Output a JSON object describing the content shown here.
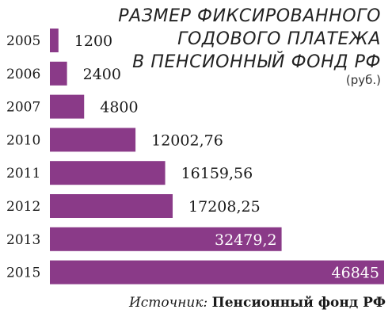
{
  "chart_data": {
    "type": "bar",
    "orientation": "horizontal",
    "title_lines": [
      "РАЗМЕР ФИКСИРОВАННОГО",
      "ГОДОВОГО ПЛАТЕЖА",
      "В ПЕНСИОННЫЙ ФОНД РФ"
    ],
    "unit": "(руб.)",
    "categories": [
      "2005",
      "2006",
      "2007",
      "2010",
      "2011",
      "2012",
      "2013",
      "2015"
    ],
    "values": [
      1200,
      2400,
      4800,
      12002.76,
      16159.56,
      17208.25,
      32479.2,
      46845
    ],
    "value_labels": [
      "1200",
      "2400",
      "4800",
      "12002,76",
      "16159,56",
      "17208,25",
      "32479,2",
      "46845"
    ],
    "xlim": [
      0,
      46845
    ],
    "grid": false,
    "bar_color": "#8a3a88",
    "inside_label_color": "#ffffff"
  },
  "source": {
    "label": "Источник:",
    "value": "Пенсионный фонд РФ"
  }
}
